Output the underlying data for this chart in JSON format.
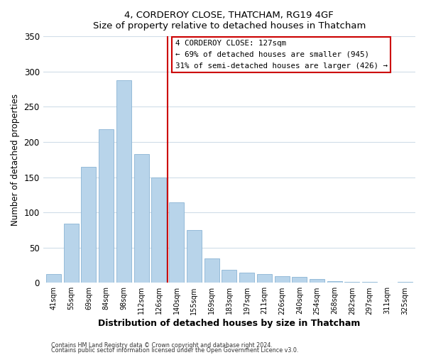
{
  "title": "4, CORDEROY CLOSE, THATCHAM, RG19 4GF",
  "subtitle": "Size of property relative to detached houses in Thatcham",
  "xlabel": "Distribution of detached houses by size in Thatcham",
  "ylabel": "Number of detached properties",
  "bar_labels": [
    "41sqm",
    "55sqm",
    "69sqm",
    "84sqm",
    "98sqm",
    "112sqm",
    "126sqm",
    "140sqm",
    "155sqm",
    "169sqm",
    "183sqm",
    "197sqm",
    "211sqm",
    "226sqm",
    "240sqm",
    "254sqm",
    "268sqm",
    "282sqm",
    "297sqm",
    "311sqm",
    "325sqm"
  ],
  "bar_values": [
    12,
    84,
    165,
    218,
    288,
    183,
    150,
    114,
    75,
    35,
    18,
    14,
    12,
    9,
    8,
    5,
    2,
    1,
    1,
    0,
    1
  ],
  "bar_color": "#b8d4ea",
  "bar_edge_color": "#8ab4d4",
  "vline_color": "#cc0000",
  "annotation_title": "4 CORDEROY CLOSE: 127sqm",
  "annotation_line1": "← 69% of detached houses are smaller (945)",
  "annotation_line2": "31% of semi-detached houses are larger (426) →",
  "annotation_box_color": "#ffffff",
  "annotation_box_edge": "#cc0000",
  "ylim": [
    0,
    350
  ],
  "yticks": [
    0,
    50,
    100,
    150,
    200,
    250,
    300,
    350
  ],
  "bg_color": "#ffffff",
  "grid_color": "#d0dde8",
  "footer1": "Contains HM Land Registry data © Crown copyright and database right 2024.",
  "footer2": "Contains public sector information licensed under the Open Government Licence v3.0."
}
